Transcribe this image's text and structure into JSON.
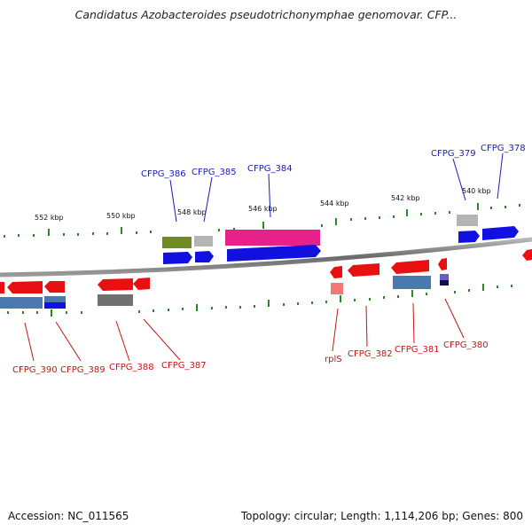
{
  "title": "Candidatus Azobacteroides pseudotrichonymphae genomovar. CFP...",
  "footer": {
    "accession": "Accession: NC_011565",
    "summary": "Topology: circular; Length: 1,114,206 bp; Genes: 800"
  },
  "kbp_labels": [
    "552 kbp",
    "550 kbp",
    "548 kbp",
    "546 kbp",
    "544 kbp",
    "542 kbp",
    "540 kbp"
  ],
  "genes_top_labels": [
    "CFPG_386",
    "CFPG_385",
    "CFPG_384",
    "CFPG_379",
    "CFPG_378"
  ],
  "genes_bottom_labels": [
    "CFPG_390",
    "CFPG_389",
    "CFPG_388",
    "CFPG_387",
    "rplS",
    "CFPG_382",
    "CFPG_381",
    "CFPG_380"
  ],
  "colors": {
    "forward_cds": "#1010e0",
    "reverse_cds": "#e81010",
    "backbone": "#808080",
    "tick": "#2a8a2a",
    "label_top": "#1a1ab8",
    "label_bottom": "#c81414",
    "olive": "#6e8a22",
    "pink": "#e8208a",
    "steelblue": "#4a78b0",
    "lightgray": "#b4b4b4",
    "darkgray": "#707070",
    "salmon": "#f07878",
    "purple": "#6a5acd",
    "navy": "#101050"
  }
}
